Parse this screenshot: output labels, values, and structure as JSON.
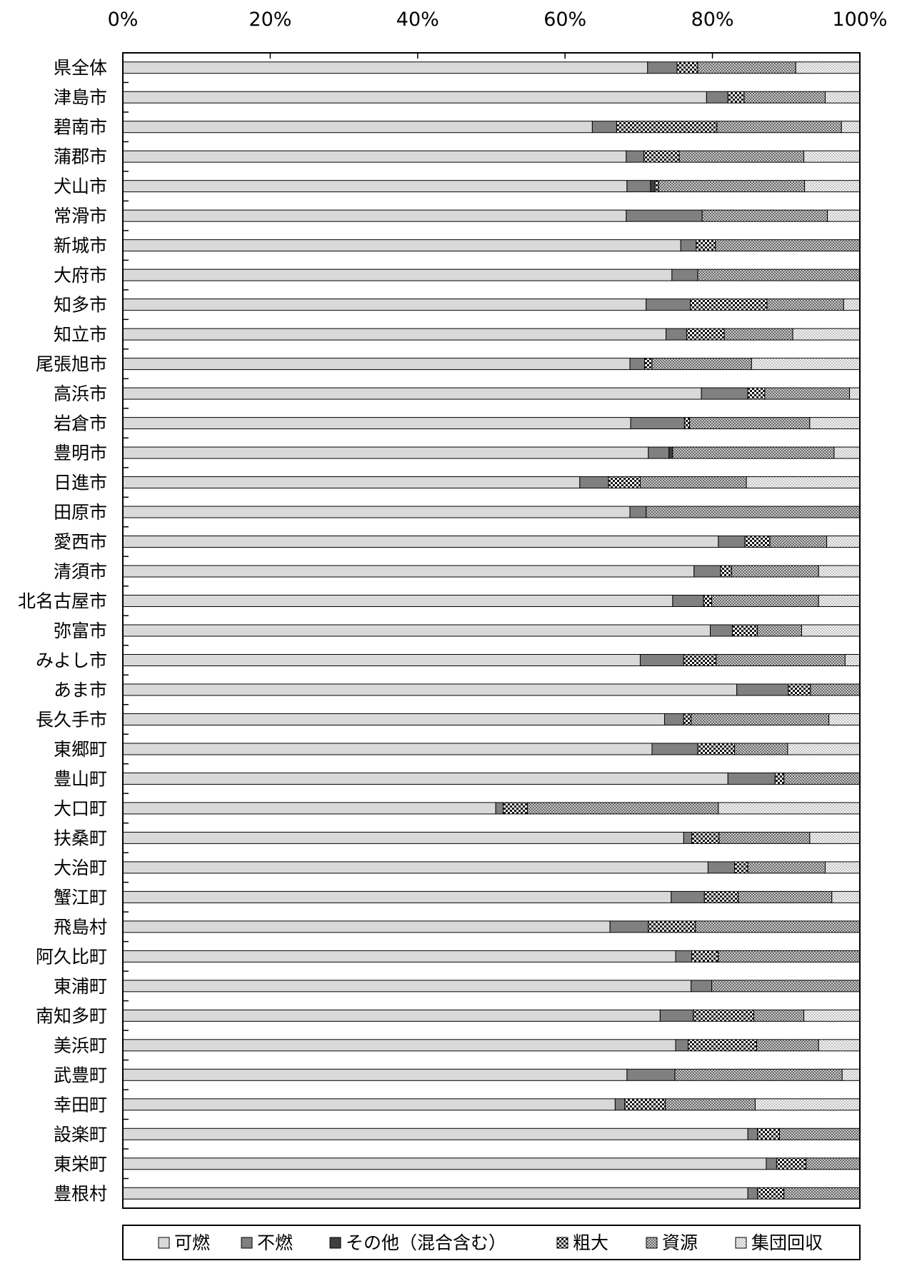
{
  "chart_data": {
    "type": "bar",
    "orientation": "horizontal",
    "stacked": true,
    "normalized": true,
    "title": "",
    "xlabel": "",
    "ylabel": "",
    "xlim": [
      0,
      100
    ],
    "x_ticks": [
      "0%",
      "20%",
      "40%",
      "60%",
      "80%",
      "100%"
    ],
    "x_axis_position": "top",
    "grid": false,
    "legend_position": "bottom",
    "categories": [
      "県全体",
      "津島市",
      "碧南市",
      "蒲郡市",
      "犬山市",
      "常滑市",
      "新城市",
      "大府市",
      "知多市",
      "知立市",
      "尾張旭市",
      "高浜市",
      "岩倉市",
      "豊明市",
      "日進市",
      "田原市",
      "愛西市",
      "清須市",
      "北名古屋市",
      "弥富市",
      "みよし市",
      "あま市",
      "長久手市",
      "東郷町",
      "豊山町",
      "大口町",
      "扶桑町",
      "大治町",
      "蟹江町",
      "飛島村",
      "阿久比町",
      "東浦町",
      "南知多町",
      "美浜町",
      "武豊町",
      "幸田町",
      "設楽町",
      "東栄町",
      "豊根村"
    ],
    "series": [
      {
        "name": "可燃",
        "fill": "#d9d9d9",
        "pattern": "solid-light",
        "values": [
          71.2,
          79.2,
          63.7,
          68.3,
          68.4,
          68.3,
          75.7,
          74.5,
          71.0,
          73.7,
          68.8,
          78.5,
          68.9,
          71.3,
          62.0,
          68.8,
          80.8,
          77.5,
          74.6,
          79.7,
          70.2,
          83.3,
          73.5,
          71.8,
          82.1,
          50.6,
          76.1,
          79.4,
          74.4,
          66.1,
          75.0,
          77.1,
          72.9,
          75.0,
          68.4,
          66.8,
          84.8,
          87.3,
          84.8
        ]
      },
      {
        "name": "不燃",
        "fill": "#808080",
        "pattern": "solid-dark",
        "values": [
          4.0,
          2.9,
          3.3,
          2.4,
          3.2,
          10.3,
          2.1,
          3.5,
          6.0,
          2.8,
          2.0,
          6.3,
          7.3,
          2.8,
          3.9,
          2.2,
          3.6,
          3.6,
          4.2,
          3.0,
          5.9,
          7.0,
          2.6,
          6.2,
          6.4,
          1.0,
          1.1,
          3.6,
          4.5,
          5.2,
          2.2,
          2.8,
          4.5,
          1.7,
          6.5,
          1.3,
          1.3,
          1.4,
          1.3
        ]
      },
      {
        "name": "その他（混合含む）",
        "fill": "#404040",
        "pattern": "solid-black",
        "values": [
          0,
          0,
          0,
          0,
          0.6,
          0,
          0,
          0,
          0,
          0,
          0,
          0,
          0,
          0.5,
          0,
          0,
          0,
          0,
          0,
          0,
          0,
          0,
          0,
          0,
          0,
          0,
          0,
          0,
          0,
          0,
          0,
          0,
          0,
          0,
          0,
          0,
          0,
          0,
          0
        ]
      },
      {
        "name": "粗大",
        "fill": "#202020",
        "pattern": "checker",
        "values": [
          2.8,
          2.2,
          13.6,
          4.8,
          0.5,
          0,
          2.6,
          0,
          10.4,
          5.1,
          1.0,
          2.3,
          0.7,
          0,
          4.3,
          0,
          3.4,
          1.5,
          1.1,
          3.4,
          4.4,
          3.0,
          1.0,
          5.0,
          1.2,
          3.3,
          3.7,
          1.8,
          4.6,
          6.4,
          3.6,
          0,
          8.2,
          9.3,
          0,
          5.5,
          3.0,
          4.0,
          3.6
        ]
      },
      {
        "name": "資源",
        "fill": "#a0a0a0",
        "pattern": "crosshatch",
        "values": [
          13.3,
          11.0,
          16.9,
          16.9,
          19.8,
          17.0,
          19.6,
          22.0,
          10.4,
          9.3,
          13.5,
          11.5,
          16.3,
          21.9,
          14.4,
          29.0,
          7.7,
          11.8,
          14.5,
          6.0,
          17.5,
          6.7,
          18.7,
          7.2,
          10.3,
          25.9,
          12.3,
          10.5,
          12.7,
          22.3,
          19.2,
          20.1,
          6.8,
          8.4,
          22.7,
          12.2,
          10.9,
          7.3,
          10.3
        ]
      },
      {
        "name": "集団回収",
        "fill": "#ebebeb",
        "pattern": "light-hatch",
        "values": [
          8.7,
          4.7,
          2.5,
          7.6,
          7.5,
          4.4,
          0,
          0,
          2.2,
          9.1,
          14.7,
          1.4,
          6.8,
          3.5,
          15.4,
          0,
          4.5,
          5.6,
          5.6,
          7.9,
          2.0,
          0,
          4.2,
          9.8,
          0,
          19.2,
          6.8,
          4.7,
          3.8,
          0,
          0,
          0,
          7.6,
          5.6,
          2.4,
          14.2,
          0,
          0,
          0
        ]
      }
    ]
  }
}
